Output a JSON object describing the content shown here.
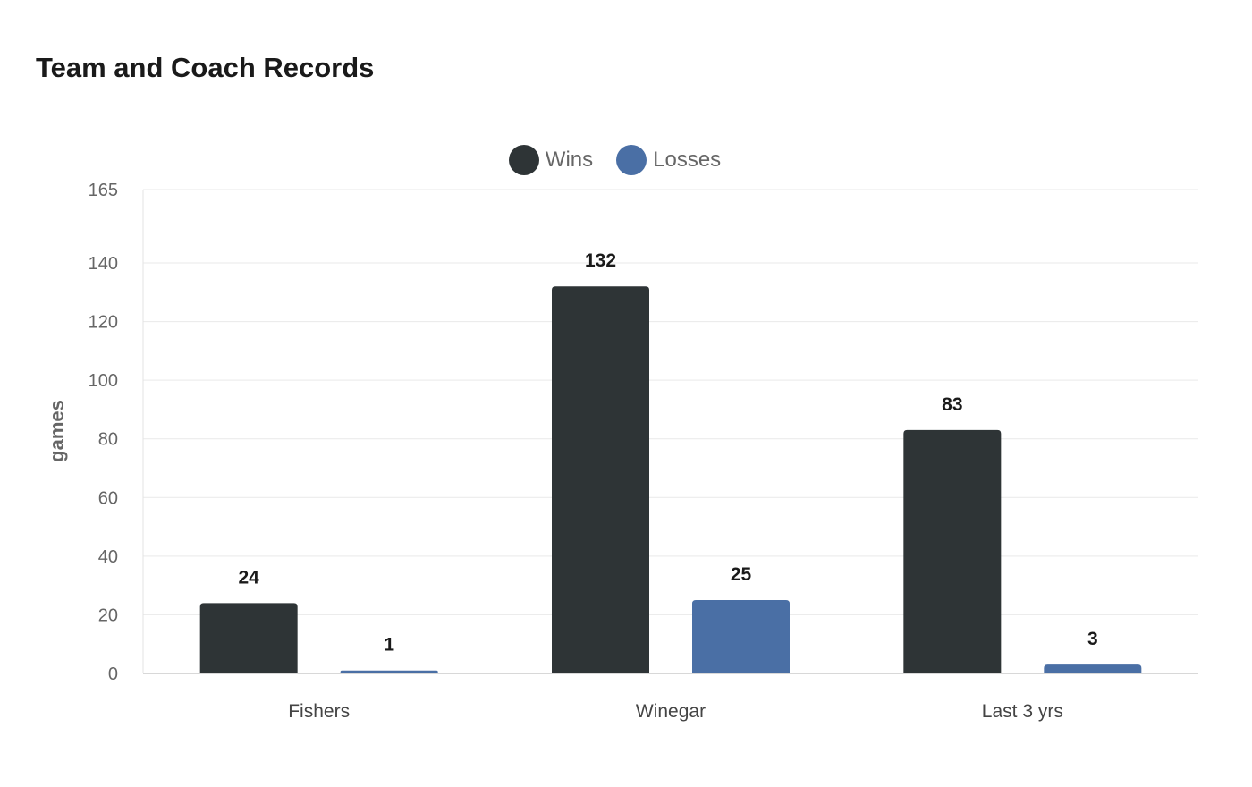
{
  "chart_data": {
    "type": "bar",
    "title": "Team and Coach Records",
    "ylabel": "games",
    "xlabel": "",
    "categories": [
      "Fishers",
      "Winegar",
      "Last 3 yrs"
    ],
    "series": [
      {
        "name": "Wins",
        "values": [
          24,
          132,
          83
        ],
        "color": "#2e3436"
      },
      {
        "name": "Losses",
        "values": [
          1,
          25,
          3
        ],
        "color": "#4a6fa5"
      }
    ],
    "ylim": [
      0,
      165
    ],
    "yticks": [
      0,
      20,
      40,
      60,
      80,
      100,
      120,
      140,
      165
    ],
    "grid": true,
    "legend_position": "top-center",
    "data_labels": true
  }
}
